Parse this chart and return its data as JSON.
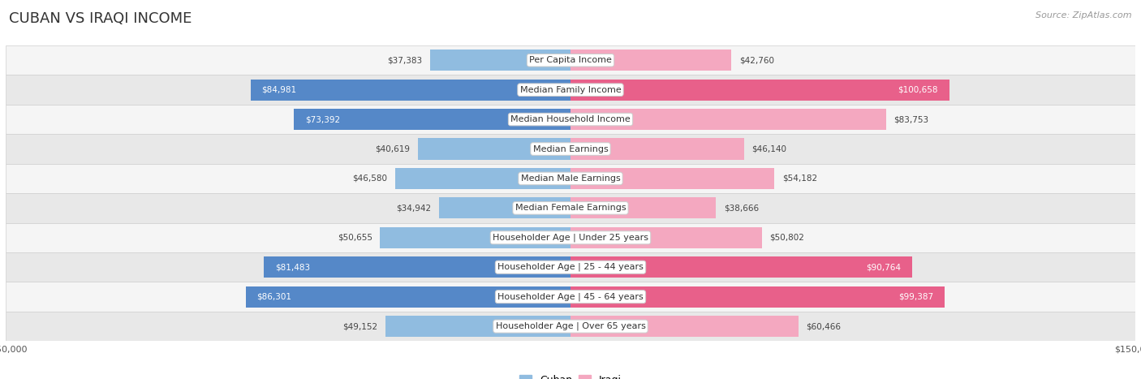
{
  "title": "CUBAN VS IRAQI INCOME",
  "source": "Source: ZipAtlas.com",
  "categories": [
    "Per Capita Income",
    "Median Family Income",
    "Median Household Income",
    "Median Earnings",
    "Median Male Earnings",
    "Median Female Earnings",
    "Householder Age | Under 25 years",
    "Householder Age | 25 - 44 years",
    "Householder Age | 45 - 64 years",
    "Householder Age | Over 65 years"
  ],
  "cuban_values": [
    37383,
    84981,
    73392,
    40619,
    46580,
    34942,
    50655,
    81483,
    86301,
    49152
  ],
  "iraqi_values": [
    42760,
    100658,
    83753,
    46140,
    54182,
    38666,
    50802,
    90764,
    99387,
    60466
  ],
  "cuban_color": "#90bce0",
  "cuban_color_dark": "#5588c8",
  "iraqi_color": "#f4a8c0",
  "iraqi_color_dark": "#e8608a",
  "max_value": 150000,
  "bar_height": 0.72,
  "background_color": "#ffffff",
  "row_color_odd": "#f5f5f5",
  "row_color_even": "#e8e8e8",
  "row_border_color": "#d0d0d0",
  "title_fontsize": 13,
  "label_fontsize": 8,
  "value_fontsize": 7.5,
  "legend_fontsize": 9,
  "source_fontsize": 8
}
